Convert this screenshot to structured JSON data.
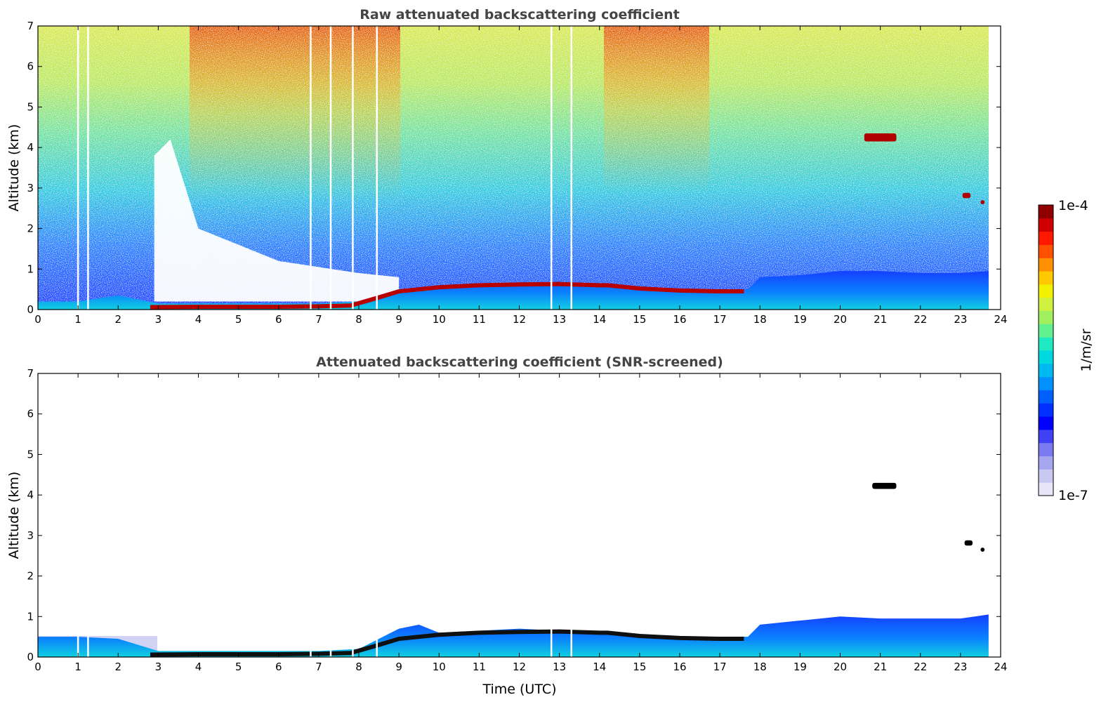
{
  "chart_data": [
    {
      "type": "heatmap",
      "title": "Raw attenuated backscattering coefficient",
      "xlabel": "",
      "ylabel": "Altitude (km)",
      "xlim": [
        0,
        24
      ],
      "ylim": [
        0,
        7
      ],
      "xticks": [
        "0",
        "1",
        "2",
        "3",
        "4",
        "5",
        "6",
        "7",
        "8",
        "9",
        "10",
        "11",
        "12",
        "13",
        "14",
        "15",
        "16",
        "17",
        "18",
        "19",
        "20",
        "21",
        "22",
        "23",
        "24"
      ],
      "yticks": [
        "0",
        "1",
        "2",
        "3",
        "4",
        "5",
        "6",
        "7"
      ],
      "features": [
        {
          "kind": "boundary_layer",
          "time": [
            0,
            1,
            2,
            3,
            4,
            5,
            6,
            7,
            8,
            9,
            10,
            11,
            12,
            13,
            14,
            15,
            16,
            17,
            17.7,
            18,
            19,
            20,
            21,
            22,
            23,
            23.7
          ],
          "top_km": [
            0.2,
            0.2,
            0.35,
            0.15,
            0.15,
            0.15,
            0.15,
            0.15,
            0.2,
            0.5,
            0.6,
            0.6,
            0.65,
            0.65,
            0.6,
            0.55,
            0.5,
            0.5,
            0.5,
            0.8,
            0.85,
            0.95,
            0.95,
            0.9,
            0.9,
            0.95
          ]
        },
        {
          "kind": "strong_layer",
          "time": [
            2.8,
            4,
            5,
            6,
            7,
            7.8,
            8.5,
            9,
            10,
            11,
            12,
            13,
            14,
            14.2,
            15,
            16,
            17,
            17.6
          ],
          "alt_km": [
            0.06,
            0.07,
            0.07,
            0.07,
            0.08,
            0.1,
            0.3,
            0.45,
            0.55,
            0.6,
            0.62,
            0.63,
            0.6,
            0.6,
            0.52,
            0.47,
            0.45,
            0.45
          ]
        },
        {
          "kind": "cloud",
          "time": [
            20.6,
            21.4
          ],
          "alt_km": [
            4.15,
            4.35
          ]
        },
        {
          "kind": "cloud",
          "time": [
            23.05,
            23.25
          ],
          "alt_km": [
            2.75,
            2.88
          ]
        },
        {
          "kind": "cloud",
          "time": [
            23.5,
            23.6
          ],
          "alt_km": [
            2.6,
            2.7
          ]
        }
      ]
    },
    {
      "type": "heatmap",
      "title": "Attenuated backscattering coefficient (SNR-screened)",
      "xlabel": "Time (UTC)",
      "ylabel": "Altitude (km)",
      "xlim": [
        0,
        24
      ],
      "ylim": [
        0,
        7
      ],
      "xticks": [
        "0",
        "1",
        "2",
        "3",
        "4",
        "5",
        "6",
        "7",
        "8",
        "9",
        "10",
        "11",
        "12",
        "13",
        "14",
        "15",
        "16",
        "17",
        "18",
        "19",
        "20",
        "21",
        "22",
        "23",
        "24"
      ],
      "yticks": [
        "0",
        "1",
        "2",
        "3",
        "4",
        "5",
        "6",
        "7"
      ],
      "features": [
        {
          "kind": "boundary_layer",
          "time": [
            0,
            1,
            2,
            3,
            4,
            5,
            6,
            7,
            8,
            9,
            9.5,
            10,
            11,
            12,
            13,
            14,
            15,
            16,
            17,
            17.7,
            18,
            19,
            20,
            21,
            22,
            23,
            23.7
          ],
          "top_km": [
            0.5,
            0.5,
            0.45,
            0.15,
            0.15,
            0.15,
            0.15,
            0.15,
            0.2,
            0.7,
            0.8,
            0.6,
            0.65,
            0.7,
            0.65,
            0.6,
            0.55,
            0.5,
            0.5,
            0.5,
            0.8,
            0.9,
            1.0,
            0.95,
            0.95,
            0.95,
            1.05
          ]
        },
        {
          "kind": "strong_layer",
          "time": [
            2.8,
            4,
            5,
            6,
            7,
            7.8,
            8.5,
            9,
            10,
            11,
            12,
            13,
            14,
            14.2,
            15,
            16,
            17,
            17.6
          ],
          "alt_km": [
            0.06,
            0.07,
            0.07,
            0.07,
            0.08,
            0.1,
            0.3,
            0.45,
            0.55,
            0.6,
            0.62,
            0.63,
            0.6,
            0.6,
            0.52,
            0.47,
            0.45,
            0.45
          ]
        },
        {
          "kind": "cloud",
          "time": [
            20.8,
            21.4
          ],
          "alt_km": [
            4.15,
            4.3
          ]
        },
        {
          "kind": "cloud",
          "time": [
            23.1,
            23.3
          ],
          "alt_km": [
            2.75,
            2.88
          ]
        },
        {
          "kind": "cloud",
          "time": [
            23.5,
            23.6
          ],
          "alt_km": [
            2.6,
            2.7
          ]
        }
      ]
    }
  ],
  "colorbar": {
    "max_label": "1e-4",
    "min_label": "1e-7",
    "unit_label": "1/m/sr",
    "colors": [
      "#e6e6f8",
      "#c8c8f0",
      "#a6a6ee",
      "#7a7af0",
      "#4040f5",
      "#0000ff",
      "#0030ff",
      "#0060ff",
      "#0090ff",
      "#00b8f0",
      "#00d8e0",
      "#20e8c0",
      "#60f090",
      "#a0f060",
      "#d0f040",
      "#f0f000",
      "#ffc800",
      "#ff9000",
      "#ff5000",
      "#ff1800",
      "#d00000",
      "#900000"
    ]
  }
}
